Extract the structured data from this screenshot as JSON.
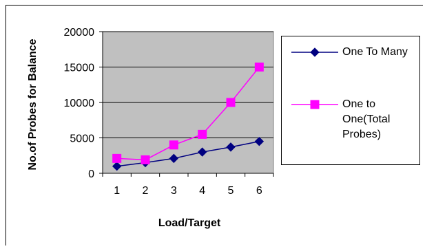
{
  "chart_data": {
    "type": "line",
    "title": "",
    "xlabel": "Load/Target",
    "ylabel": "No.of Probes for Balance",
    "categories": [
      "1",
      "2",
      "3",
      "4",
      "5",
      "6"
    ],
    "ylim": [
      0,
      20000
    ],
    "yticks": [
      "0",
      "5000",
      "10000",
      "15000",
      "20000"
    ],
    "grid": true,
    "plot_background": "#c0c0c0",
    "legend_position": "right",
    "series": [
      {
        "name": "One To Many",
        "values": [
          1000,
          1500,
          2100,
          3000,
          3700,
          4500
        ],
        "color": "#000080",
        "marker": "diamond"
      },
      {
        "name": "One to One(Total Probes)",
        "values": [
          2100,
          1900,
          4000,
          5500,
          10000,
          15000
        ],
        "color": "#ff00ff",
        "marker": "square"
      }
    ]
  },
  "legend": {
    "items": [
      {
        "lines": [
          "One To Many"
        ]
      },
      {
        "lines": [
          "One to",
          "One(Total",
          "Probes)"
        ]
      }
    ]
  }
}
